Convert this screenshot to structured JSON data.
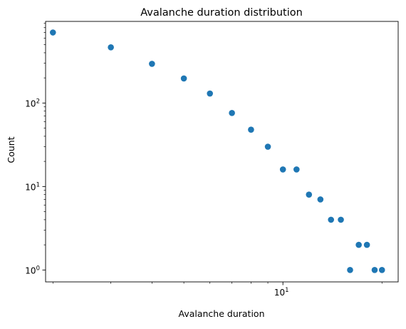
{
  "chart_data": {
    "type": "scatter",
    "title": "Avalanche duration distribution",
    "xlabel": "Avalanche duration",
    "ylabel": "Count",
    "x_scale": "log",
    "y_scale": "log",
    "xlim": [
      1.9,
      22.4
    ],
    "ylim": [
      0.72,
      950
    ],
    "x_ticks": [
      {
        "value": 10,
        "label": "10",
        "exp": "1"
      }
    ],
    "x_minor_ticks": [
      2,
      3,
      4,
      5,
      6,
      7,
      8,
      9,
      20
    ],
    "y_ticks": [
      {
        "value": 1,
        "label": "10",
        "exp": "0"
      },
      {
        "value": 10,
        "label": "10",
        "exp": "1"
      },
      {
        "value": 100,
        "label": "10",
        "exp": "2"
      }
    ],
    "y_minor_ticks": [
      2,
      3,
      4,
      5,
      6,
      7,
      8,
      9,
      20,
      30,
      40,
      50,
      60,
      70,
      80,
      90,
      200,
      300,
      400,
      500,
      600,
      700,
      800,
      900
    ],
    "grid": false,
    "legend": "none",
    "marker_color": "#1f77b4",
    "series": [
      {
        "points": [
          {
            "x": 2,
            "y": 700
          },
          {
            "x": 3,
            "y": 465
          },
          {
            "x": 4,
            "y": 295
          },
          {
            "x": 5,
            "y": 197
          },
          {
            "x": 6,
            "y": 130
          },
          {
            "x": 7,
            "y": 76
          },
          {
            "x": 8,
            "y": 48
          },
          {
            "x": 9,
            "y": 30
          },
          {
            "x": 10,
            "y": 16
          },
          {
            "x": 11,
            "y": 16
          },
          {
            "x": 12,
            "y": 8
          },
          {
            "x": 13,
            "y": 7
          },
          {
            "x": 14,
            "y": 4
          },
          {
            "x": 15,
            "y": 4
          },
          {
            "x": 16,
            "y": 1
          },
          {
            "x": 17,
            "y": 2
          },
          {
            "x": 18,
            "y": 2
          },
          {
            "x": 19,
            "y": 1
          },
          {
            "x": 20,
            "y": 1
          }
        ]
      }
    ]
  }
}
